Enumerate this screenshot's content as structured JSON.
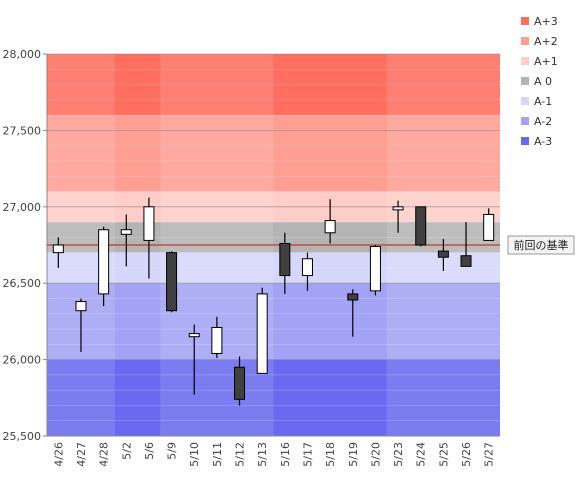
{
  "chart_data": {
    "type": "candlestick",
    "title": "",
    "ylim": [
      25500,
      28000
    ],
    "y_ticks": [
      25500,
      26000,
      26500,
      27000,
      27500,
      28000
    ],
    "y_tick_labels": [
      "25,500",
      "26,000",
      "26,500",
      "27,000",
      "27,500",
      "28,000"
    ],
    "categories": [
      "4/26",
      "4/27",
      "4/28",
      "5/2",
      "5/6",
      "5/9",
      "5/10",
      "5/11",
      "5/12",
      "5/13",
      "5/16",
      "5/17",
      "5/18",
      "5/19",
      "5/20",
      "5/23",
      "5/24",
      "5/25",
      "5/26",
      "5/27"
    ],
    "candles": [
      {
        "date": "4/26",
        "open": 26700,
        "high": 26800,
        "low": 26600,
        "close": 26750
      },
      {
        "date": "4/27",
        "open": 26320,
        "high": 26400,
        "low": 26050,
        "close": 26380
      },
      {
        "date": "4/28",
        "open": 26430,
        "high": 26870,
        "low": 26350,
        "close": 26850
      },
      {
        "date": "5/2",
        "open": 26820,
        "high": 26950,
        "low": 26610,
        "close": 26850
      },
      {
        "date": "5/6",
        "open": 26780,
        "high": 27060,
        "low": 26530,
        "close": 27000
      },
      {
        "date": "5/9",
        "open": 26700,
        "high": 26710,
        "low": 26310,
        "close": 26320
      },
      {
        "date": "5/10",
        "open": 26150,
        "high": 26230,
        "low": 25770,
        "close": 26170
      },
      {
        "date": "5/11",
        "open": 26040,
        "high": 26280,
        "low": 26010,
        "close": 26210
      },
      {
        "date": "5/12",
        "open": 25950,
        "high": 26020,
        "low": 25700,
        "close": 25740
      },
      {
        "date": "5/13",
        "open": 25910,
        "high": 26470,
        "low": 25910,
        "close": 26430
      },
      {
        "date": "5/16",
        "open": 26760,
        "high": 26830,
        "low": 26430,
        "close": 26550
      },
      {
        "date": "5/17",
        "open": 26550,
        "high": 26700,
        "low": 26450,
        "close": 26660
      },
      {
        "date": "5/18",
        "open": 26830,
        "high": 27050,
        "low": 26760,
        "close": 26910
      },
      {
        "date": "5/19",
        "open": 26430,
        "high": 26460,
        "low": 26150,
        "close": 26390
      },
      {
        "date": "5/20",
        "open": 26450,
        "high": 26750,
        "low": 26420,
        "close": 26740
      },
      {
        "date": "5/23",
        "open": 26980,
        "high": 27040,
        "low": 26830,
        "close": 27000
      },
      {
        "date": "5/24",
        "open": 27000,
        "high": 27000,
        "low": 26740,
        "close": 26750
      },
      {
        "date": "5/25",
        "open": 26710,
        "high": 26790,
        "low": 26580,
        "close": 26670
      },
      {
        "date": "5/26",
        "open": 26680,
        "high": 26900,
        "low": 26610,
        "close": 26610
      },
      {
        "date": "5/27",
        "open": 26780,
        "high": 26990,
        "low": 26780,
        "close": 26950
      }
    ],
    "bands": [
      {
        "name": "A+3",
        "from": 27600,
        "to": 28000,
        "color": "#ff6e5f"
      },
      {
        "name": "A+2",
        "from": 27100,
        "to": 27600,
        "color": "#ff9e93"
      },
      {
        "name": "A+1",
        "from": 26900,
        "to": 27100,
        "color": "#ffcdc8"
      },
      {
        "name": "A 0",
        "from": 26700,
        "to": 26900,
        "color": "#b4b4b4"
      },
      {
        "name": "A-1",
        "from": 26500,
        "to": 26700,
        "color": "#d6d6fb"
      },
      {
        "name": "A-2",
        "from": 26000,
        "to": 26500,
        "color": "#a3a3f6"
      },
      {
        "name": "A-3",
        "from": 25500,
        "to": 26000,
        "color": "#6a6af0"
      }
    ],
    "shaded_column_groups": [
      [
        0,
        1,
        2
      ],
      [
        5,
        6,
        7,
        8,
        9
      ],
      [
        15,
        16,
        17,
        18,
        19
      ]
    ],
    "reference_line": {
      "value": 26750,
      "label": "前回の基準",
      "color": "#c0392b"
    },
    "legend": {
      "placement": "right",
      "entries": [
        "A+3",
        "A+2",
        "A+1",
        "A 0",
        "A-1",
        "A-2",
        "A-3"
      ]
    },
    "colors": {
      "up": "#ffffff",
      "down": "#404040",
      "outline": "#000000"
    }
  }
}
